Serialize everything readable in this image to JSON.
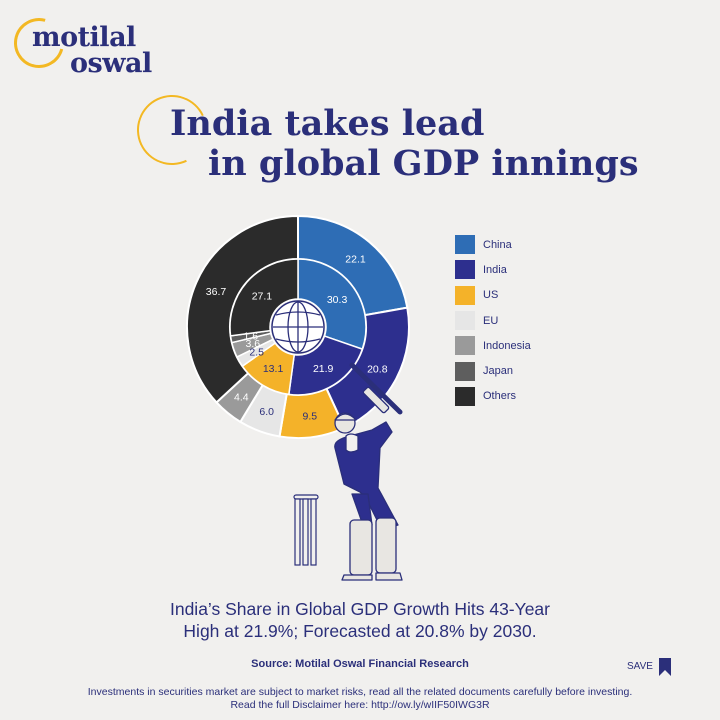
{
  "brand": {
    "line1": "motilal",
    "line2": "oswal"
  },
  "title": {
    "line1": "India takes lead",
    "line2": "in global GDP innings"
  },
  "chart_data": {
    "type": "pie",
    "subtype": "nested-donut",
    "categories": [
      "China",
      "India",
      "US",
      "EU",
      "Indonesia",
      "Japan",
      "Others"
    ],
    "colors": [
      "#2e6db5",
      "#2d2f8e",
      "#f4b229",
      "#e6e6e6",
      "#9a9a9a",
      "#5e5e5e",
      "#2b2b2b"
    ],
    "series": [
      {
        "ring": "outer",
        "values": [
          22.1,
          20.8,
          9.5,
          6.0,
          4.4,
          0,
          36.7
        ]
      },
      {
        "ring": "inner",
        "values": [
          30.3,
          21.9,
          13.1,
          2.5,
          3.6,
          1.6,
          27.1
        ]
      }
    ],
    "legend_position": "right"
  },
  "center_icon": "globe-icon",
  "illustration": "cricket-batsman",
  "subtitle": {
    "line1": "India’s Share in Global GDP Growth Hits 43-Year",
    "line2": "High at 21.9%; Forecasted at 20.8% by 2030."
  },
  "source": "Source: Motilal Oswal Financial Research",
  "save_label": "SAVE",
  "disclaimer": {
    "line1": "Investments in securities market are subject to market risks, read all the related documents carefully before investing.",
    "line2": "Read the full Disclaimer here: http://ow.ly/wIIF50IWG3R"
  }
}
